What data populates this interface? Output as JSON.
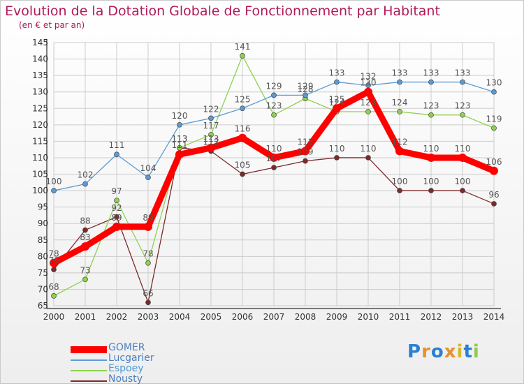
{
  "title": "Evolution de la Dotation Globale de Fonctionnement par Habitant",
  "subtitle": "(en € et par an)",
  "logo_text": "Proxiti",
  "colors": {
    "title": "#b01a58",
    "grid": "#cccccc",
    "axis": "#333333",
    "label": "#555555"
  },
  "chart_data": {
    "type": "line",
    "x": [
      "2000",
      "2001",
      "2002",
      "2003",
      "2004",
      "2005",
      "2006",
      "2007",
      "2008",
      "2009",
      "2010",
      "2011",
      "2012",
      "2013",
      "2014"
    ],
    "ylim": [
      65,
      145
    ],
    "yticks": [
      65,
      70,
      75,
      80,
      85,
      90,
      95,
      100,
      105,
      110,
      115,
      120,
      125,
      130,
      135,
      140,
      145
    ],
    "grid": true,
    "legend_position": "bottom-left",
    "series": [
      {
        "name": "GOMER",
        "color": "#ff0000",
        "values": [
          78,
          83,
          89,
          89,
          111,
          113,
          116,
          110,
          112,
          125,
          130,
          112,
          110,
          110,
          106
        ]
      },
      {
        "name": "Lucgarier",
        "color": "#5b9bd5",
        "values": [
          100,
          102,
          111,
          104,
          120,
          122,
          125,
          129,
          129,
          133,
          132,
          133,
          133,
          133,
          130
        ]
      },
      {
        "name": "Espoey",
        "color": "#8fd14f",
        "values": [
          68,
          73,
          97,
          78,
          113,
          117,
          141,
          123,
          128,
          124,
          124,
          124,
          123,
          123,
          119
        ]
      },
      {
        "name": "Nousty",
        "color": "#7b2a2a",
        "values": [
          76,
          88,
          92,
          66,
          113,
          112,
          105,
          107,
          109,
          110,
          110,
          100,
          100,
          100,
          96
        ]
      }
    ]
  }
}
